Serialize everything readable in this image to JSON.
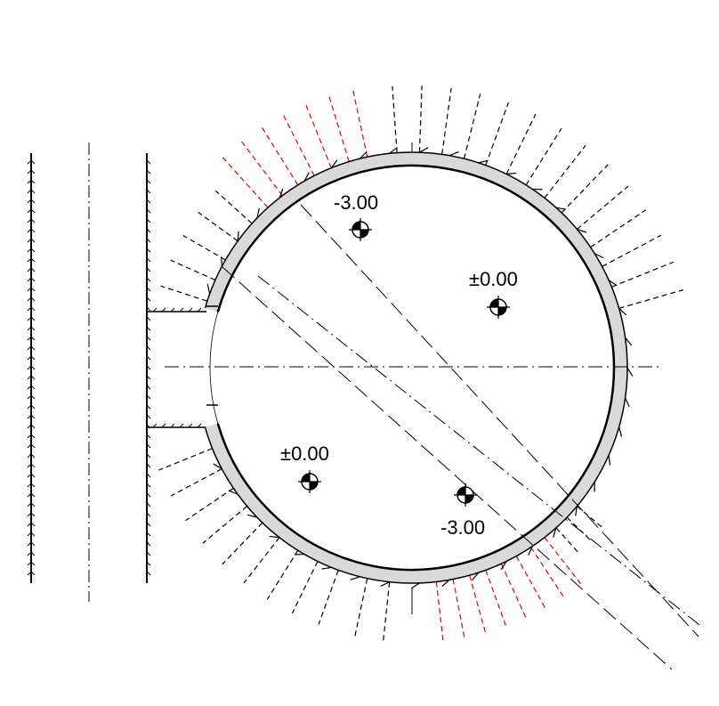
{
  "drawing": {
    "levels": [
      {
        "text": "-3.00"
      },
      {
        "text": "±0.00"
      },
      {
        "text": "±0.00"
      },
      {
        "text": "-3.00"
      }
    ]
  },
  "colors": {
    "line": "#000000",
    "wall_fill": "#d9d9d9",
    "highlight_dash": "#e60000"
  }
}
